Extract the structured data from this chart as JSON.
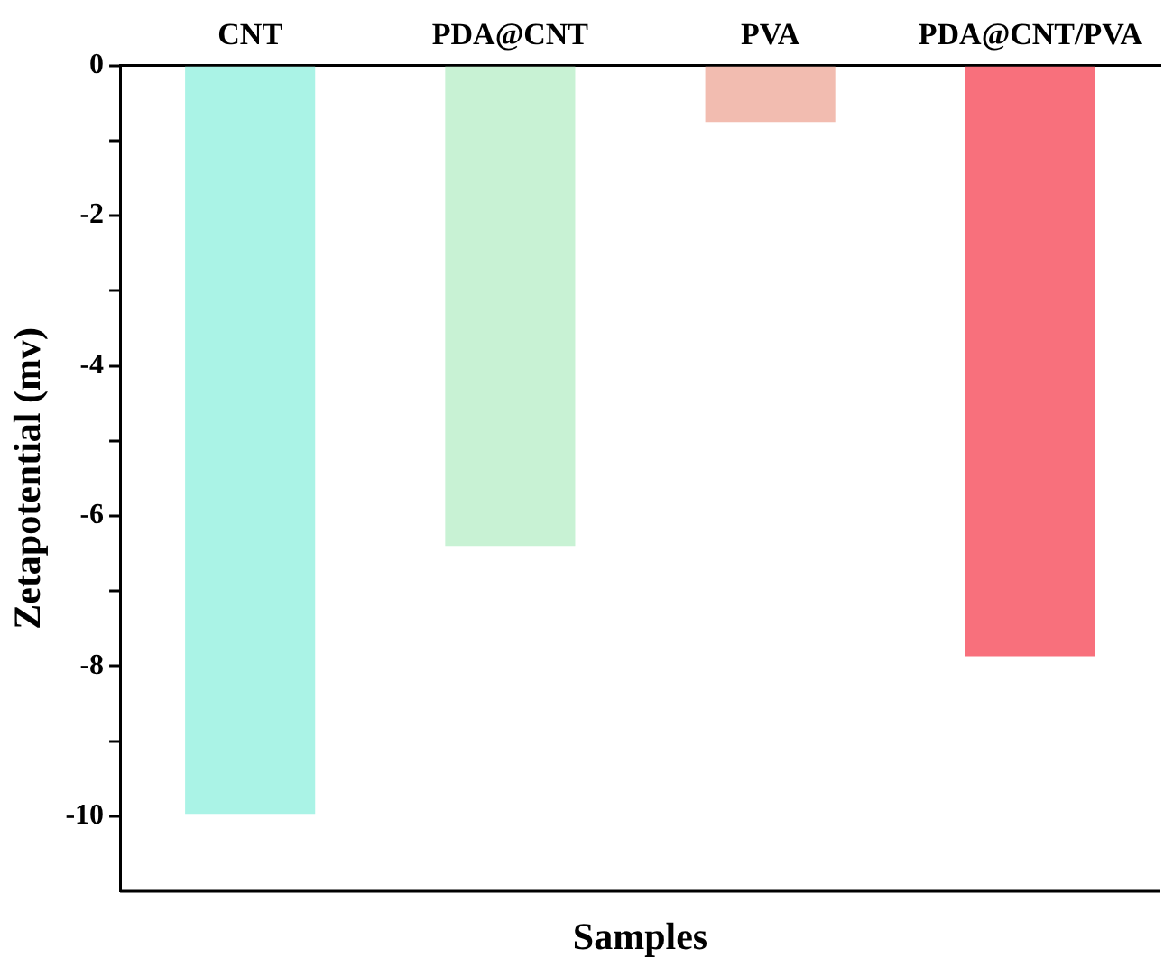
{
  "chart_data": {
    "type": "bar",
    "xlabel": "Samples",
    "ylabel": "Zetapotential (mv)",
    "categories": [
      "CNT",
      "PDA@CNT",
      "PVA",
      "PDA@CNT/PVA"
    ],
    "values": [
      -9.97,
      -6.4,
      -0.75,
      -7.87
    ],
    "colors": [
      "#aaf3e6",
      "#c8f2d4",
      "#f2bcb0",
      "#f8707c"
    ],
    "ylim": [
      -11,
      0
    ],
    "yticks": [
      0,
      {
        "value": -1,
        "label": null
      },
      -2,
      {
        "value": -3,
        "label": null
      },
      -4,
      {
        "value": -5,
        "label": null
      },
      -6,
      {
        "value": -7,
        "label": null
      },
      -8,
      {
        "value": -9,
        "label": null
      },
      -10
    ],
    "grid": false,
    "legend": false
  }
}
